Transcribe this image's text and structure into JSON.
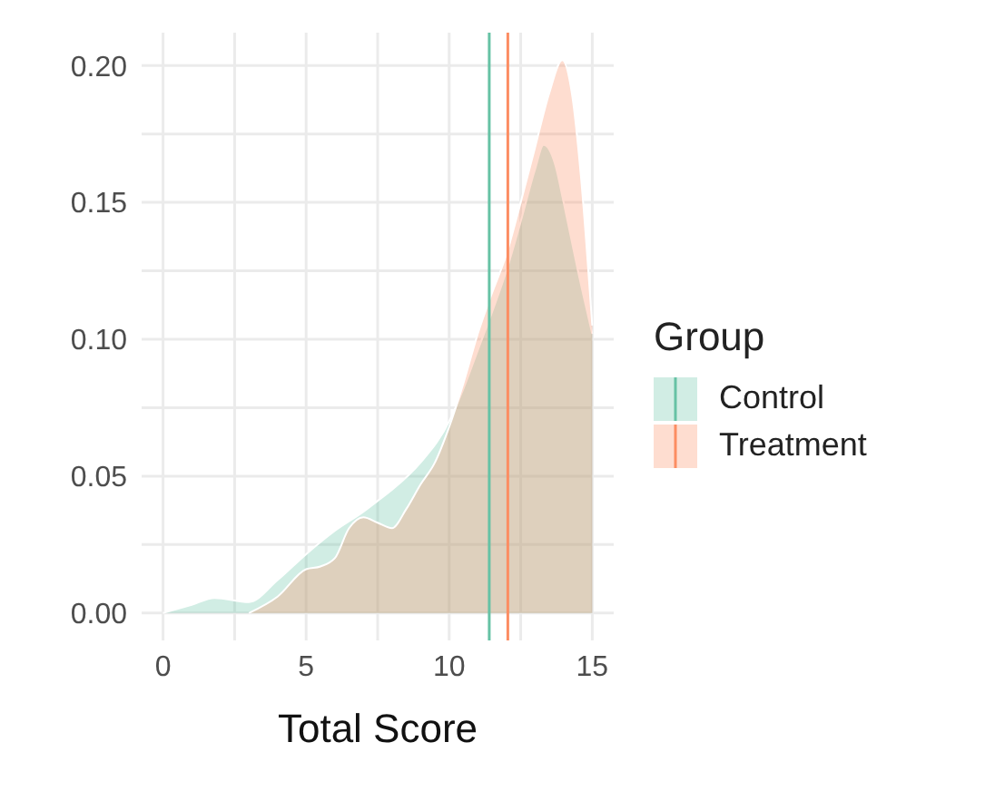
{
  "chart_data": {
    "type": "area",
    "xlabel": "Total Score",
    "legend_title": "Group",
    "series": [
      {
        "name": "Control",
        "color": "#66c2a5",
        "x": [
          0,
          1,
          1.8,
          3,
          4,
          5,
          6,
          7,
          7.5,
          8,
          9,
          10,
          10.5,
          11,
          11.5,
          12,
          12.5,
          13,
          13.3,
          13.7,
          14,
          14.5,
          15
        ],
        "values": [
          0,
          0.003,
          0.0055,
          0.004,
          0.012,
          0.0215,
          0.03,
          0.037,
          0.041,
          0.045,
          0.055,
          0.07,
          0.082,
          0.096,
          0.11,
          0.125,
          0.143,
          0.162,
          0.171,
          0.164,
          0.15,
          0.125,
          0.102
        ]
      },
      {
        "name": "Treatment",
        "color": "#fc8d62",
        "x": [
          3,
          4,
          5,
          5.5,
          6,
          6.5,
          7,
          7.5,
          8,
          8.5,
          9,
          9.5,
          10,
          10.5,
          11,
          11.5,
          12,
          12.5,
          13,
          13.5,
          13.95,
          14.3,
          14.6,
          15
        ],
        "values": [
          0,
          0.006,
          0.016,
          0.017,
          0.02,
          0.031,
          0.035,
          0.033,
          0.031,
          0.038,
          0.047,
          0.055,
          0.068,
          0.084,
          0.102,
          0.117,
          0.131,
          0.15,
          0.17,
          0.19,
          0.202,
          0.189,
          0.16,
          0.105
        ]
      }
    ],
    "ref_lines": [
      {
        "axis": "x",
        "value": 11.4,
        "color": "#66c2a5"
      },
      {
        "axis": "x",
        "value": 12.05,
        "color": "#fc8d62"
      }
    ],
    "xlim": [
      -0.75,
      15.75
    ],
    "xticks": [
      0,
      {
        "value": 2.5,
        "label": null
      },
      5,
      {
        "value": 7.5,
        "label": null
      },
      10,
      {
        "value": 12.5,
        "label": null
      },
      15
    ],
    "ylim": [
      -0.01,
      0.212
    ],
    "yticks": [
      {
        "value": 0,
        "label": "0.00"
      },
      {
        "value": 0.025,
        "label": null
      },
      0.05,
      {
        "value": 0.075,
        "label": null
      },
      {
        "value": 0.1,
        "label": "0.10"
      },
      {
        "value": 0.125,
        "label": null
      },
      0.15,
      {
        "value": 0.175,
        "label": null
      },
      {
        "value": 0.2,
        "label": "0.20"
      }
    ],
    "grid": true,
    "legend": "right"
  }
}
